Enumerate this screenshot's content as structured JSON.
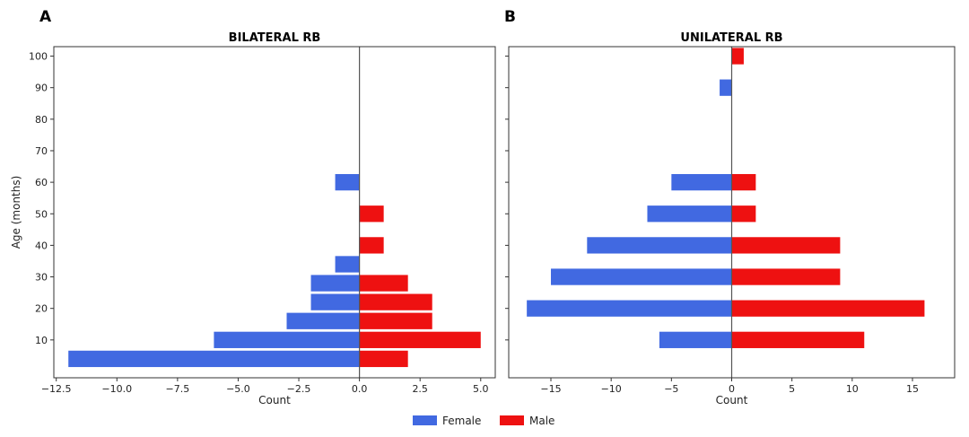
{
  "colors": {
    "female": "#4169e1",
    "male": "#ee1111"
  },
  "legend": [
    {
      "label": "Female",
      "color": "#4169e1"
    },
    {
      "label": "Male",
      "color": "#ee1111"
    }
  ],
  "ylabel": "Age (months)",
  "yticks": [
    10,
    20,
    30,
    40,
    50,
    60,
    70,
    80,
    90,
    100
  ],
  "chart_data": [
    {
      "type": "bar",
      "panel_label": "A",
      "title": "BILATERAL RB",
      "xlabel": "Count",
      "ylabel": "Age (months)",
      "xlim": [
        -12.6,
        5.6
      ],
      "ylim": [
        -2,
        103
      ],
      "xticks": [
        -12.5,
        -10.0,
        -7.5,
        -5.0,
        -2.5,
        0.0,
        2.5,
        5.0
      ],
      "xtick_labels": [
        "−12.5",
        "−10.0",
        "−7.5",
        "−5.0",
        "−2.5",
        "0.0",
        "2.5",
        "5.0"
      ],
      "female": [
        {
          "age": 4,
          "count": -12
        },
        {
          "age": 10,
          "count": -6
        },
        {
          "age": 16,
          "count": -3
        },
        {
          "age": 22,
          "count": -2
        },
        {
          "age": 28,
          "count": -2
        },
        {
          "age": 34,
          "count": -1
        },
        {
          "age": 60,
          "count": -1
        }
      ],
      "male": [
        {
          "age": 4,
          "count": 2
        },
        {
          "age": 10,
          "count": 5
        },
        {
          "age": 16,
          "count": 3
        },
        {
          "age": 22,
          "count": 3
        },
        {
          "age": 28,
          "count": 2
        },
        {
          "age": 40,
          "count": 1
        },
        {
          "age": 50,
          "count": 1
        }
      ]
    },
    {
      "type": "bar",
      "panel_label": "B",
      "title": "UNILATERAL RB",
      "xlabel": "Count",
      "ylabel": "",
      "xlim": [
        -18.5,
        18.5
      ],
      "ylim": [
        -2,
        103
      ],
      "xticks": [
        -15,
        -10,
        -5,
        0,
        5,
        10,
        15
      ],
      "xtick_labels": [
        "−15",
        "−10",
        "−5",
        "0",
        "5",
        "10",
        "15"
      ],
      "female": [
        {
          "age": 10,
          "count": -6
        },
        {
          "age": 20,
          "count": -17
        },
        {
          "age": 30,
          "count": -15
        },
        {
          "age": 40,
          "count": -12
        },
        {
          "age": 50,
          "count": -7
        },
        {
          "age": 60,
          "count": -5
        },
        {
          "age": 90,
          "count": -1
        }
      ],
      "male": [
        {
          "age": 10,
          "count": 11
        },
        {
          "age": 20,
          "count": 16
        },
        {
          "age": 30,
          "count": 9
        },
        {
          "age": 40,
          "count": 9
        },
        {
          "age": 50,
          "count": 2
        },
        {
          "age": 60,
          "count": 2
        },
        {
          "age": 100,
          "count": 1
        }
      ]
    }
  ]
}
